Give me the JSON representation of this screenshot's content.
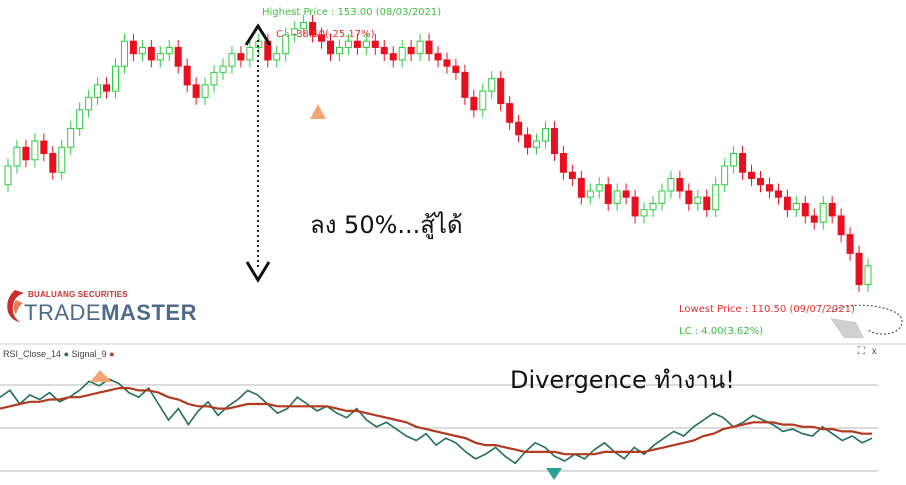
{
  "annotations": {
    "highest_label": "Highest Price : 153.00 (08/03/2021)",
    "change_label": "C : -38.50(-25.17%)",
    "lowest_label": "Lowest Price : 110.50 (09/07/2021)",
    "lc_label": "LC : 4.00(3.62%)",
    "drop_text": "ลง 50%...สู้ได้",
    "divergence_text": "Divergence ทำงาน!"
  },
  "brand": {
    "top": "BUALUANG SECURITIES",
    "main_a": "TRADE",
    "main_b": "MASTER"
  },
  "rsi_legend": {
    "rsi_name": "RSI_Close_14",
    "signal_name": "Signal_9"
  },
  "window_buttons": {
    "expand": "⛶",
    "close": "x"
  },
  "colors": {
    "up": "#2ecc40",
    "down": "#e8101e",
    "rsi": "#1f6f5a",
    "signal": "#b23a1e",
    "marker": "#f4a672",
    "highest_text": "#3fbf3f",
    "lowest_text": "#e53030"
  },
  "chart_data": [
    {
      "type": "candlestick",
      "ylim": [
        105,
        155
      ],
      "highest": 153.0,
      "lowest": 110.5,
      "closes": [
        130,
        133,
        131,
        134,
        132,
        129,
        133,
        136,
        139,
        141,
        143,
        142,
        146,
        150,
        148,
        149,
        147,
        148,
        149,
        146,
        143,
        141,
        143,
        145,
        146,
        148,
        147,
        149,
        150,
        147,
        148,
        151,
        152,
        153,
        151,
        150,
        148,
        149,
        150,
        149,
        150,
        149,
        148,
        147,
        149,
        148,
        150,
        148,
        147,
        146,
        145,
        141,
        139,
        142,
        144,
        140,
        137,
        135,
        133,
        134,
        136,
        132,
        129,
        128,
        125,
        126,
        127,
        124,
        126,
        125,
        122,
        123,
        124,
        126,
        128,
        126,
        124,
        125,
        123,
        127,
        130,
        132,
        129,
        128,
        127,
        126,
        125,
        123,
        124,
        122,
        121,
        124,
        122,
        119,
        116,
        111,
        114
      ],
      "opens": [
        127,
        130,
        133,
        131,
        134,
        132,
        129,
        133,
        136,
        139,
        141,
        143,
        142,
        146,
        150,
        148,
        149,
        147,
        148,
        149,
        146,
        143,
        141,
        143,
        145,
        146,
        148,
        147,
        149,
        150,
        147,
        148,
        151,
        152,
        153,
        151,
        150,
        148,
        149,
        150,
        149,
        150,
        149,
        148,
        147,
        149,
        148,
        150,
        148,
        147,
        146,
        145,
        141,
        139,
        142,
        144,
        140,
        137,
        135,
        133,
        134,
        136,
        132,
        129,
        128,
        125,
        126,
        127,
        124,
        126,
        125,
        122,
        123,
        124,
        126,
        128,
        126,
        124,
        125,
        123,
        127,
        130,
        132,
        129,
        128,
        127,
        126,
        125,
        123,
        124,
        122,
        121,
        124,
        122,
        119,
        116,
        111
      ]
    },
    {
      "type": "line",
      "series": [
        {
          "name": "RSI_Close_14",
          "values": [
            55,
            58,
            52,
            56,
            54,
            57,
            53,
            55,
            58,
            62,
            60,
            63,
            61,
            57,
            55,
            59,
            52,
            45,
            50,
            43,
            49,
            53,
            47,
            51,
            54,
            58,
            56,
            52,
            48,
            50,
            55,
            52,
            49,
            51,
            48,
            46,
            50,
            45,
            42,
            44,
            41,
            38,
            36,
            39,
            34,
            37,
            35,
            31,
            28,
            30,
            33,
            29,
            26,
            31,
            35,
            33,
            29,
            27,
            30,
            28,
            32,
            35,
            31,
            28,
            33,
            30,
            34,
            37,
            40,
            38,
            42,
            45,
            48,
            46,
            42,
            44,
            47,
            45,
            43,
            40,
            41,
            39,
            38,
            42,
            39,
            36,
            38,
            35,
            37
          ]
        },
        {
          "name": "Signal_9",
          "values": [
            50,
            51,
            52,
            53,
            53,
            54,
            54,
            55,
            55,
            56,
            57,
            58,
            59,
            59,
            58,
            58,
            57,
            55,
            54,
            52,
            51,
            51,
            50,
            50,
            51,
            52,
            52,
            52,
            51,
            51,
            51,
            51,
            51,
            51,
            50,
            49,
            49,
            48,
            47,
            46,
            45,
            44,
            42,
            41,
            40,
            39,
            38,
            37,
            35,
            34,
            34,
            33,
            32,
            31,
            31,
            31,
            31,
            30,
            30,
            30,
            30,
            31,
            31,
            31,
            31,
            31,
            32,
            33,
            34,
            35,
            36,
            38,
            39,
            41,
            42,
            43,
            44,
            44,
            44,
            43,
            43,
            42,
            42,
            41,
            41,
            40,
            40,
            39,
            39
          ]
        }
      ]
    }
  ]
}
